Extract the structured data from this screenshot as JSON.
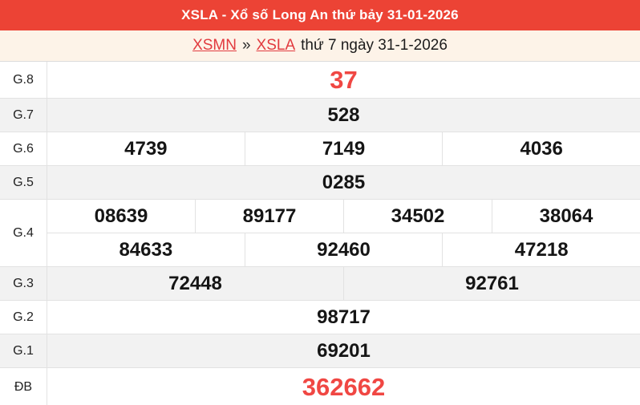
{
  "header": {
    "title": "XSLA - Xổ số Long An thứ bảy 31-01-2026"
  },
  "breadcrumb": {
    "links": [
      {
        "label": "XSMN"
      },
      {
        "label": "XSLA"
      }
    ],
    "separator": "»",
    "suffix": "thứ 7 ngày 31-1-2026"
  },
  "results_table": {
    "rows": [
      {
        "label": "G.8",
        "highlight": true,
        "lines": [
          [
            "37"
          ]
        ]
      },
      {
        "label": "G.7",
        "highlight": false,
        "lines": [
          [
            "528"
          ]
        ]
      },
      {
        "label": "G.6",
        "highlight": false,
        "lines": [
          [
            "4739",
            "7149",
            "4036"
          ]
        ]
      },
      {
        "label": "G.5",
        "highlight": false,
        "lines": [
          [
            "0285"
          ]
        ]
      },
      {
        "label": "G.4",
        "highlight": false,
        "lines": [
          [
            "08639",
            "89177",
            "34502",
            "38064"
          ],
          [
            "84633",
            "92460",
            "47218"
          ]
        ]
      },
      {
        "label": "G.3",
        "highlight": false,
        "lines": [
          [
            "72448",
            "92761"
          ]
        ]
      },
      {
        "label": "G.2",
        "highlight": false,
        "lines": [
          [
            "98717"
          ]
        ]
      },
      {
        "label": "G.1",
        "highlight": false,
        "lines": [
          [
            "69201"
          ]
        ]
      },
      {
        "label": "ĐB",
        "highlight": true,
        "lines": [
          [
            "362662"
          ]
        ]
      }
    ]
  },
  "colors": {
    "header_bg": "#ec4335",
    "header_text": "#ffffff",
    "page_bg": "#fdf3e8",
    "link_red": "#e23b3f",
    "highlight_number_red": "#f04743",
    "number_text": "#151515",
    "row_alt_bg": "#f2f2f2",
    "border": "#e2e2e2"
  }
}
